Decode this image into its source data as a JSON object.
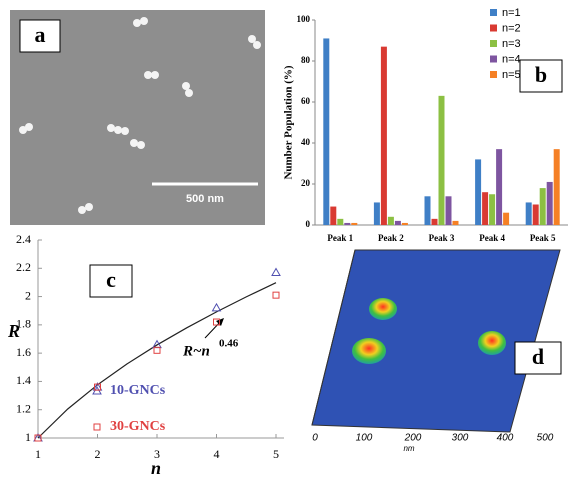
{
  "panels": {
    "a": {
      "label": "a",
      "scale_bar": "500 nm"
    },
    "d": {
      "label": "d",
      "xticks": [
        "0",
        "100",
        "200",
        "300",
        "400",
        "500"
      ],
      "x_unit": "nm"
    }
  },
  "chart_data": [
    {
      "type": "bar",
      "panel_label": "b",
      "ylabel": "Number Population (%)",
      "categories": [
        "Peak 1",
        "Peak 2",
        "Peak 3",
        "Peak 4",
        "Peak 5"
      ],
      "series": [
        {
          "name": "n=1",
          "color": "#3f7fc6",
          "values": [
            91,
            11,
            14,
            32,
            11
          ]
        },
        {
          "name": "n=2",
          "color": "#d93a32",
          "values": [
            9,
            87,
            3,
            16,
            10
          ]
        },
        {
          "name": "n=3",
          "color": "#8cc043",
          "values": [
            3,
            4,
            63,
            15,
            18
          ]
        },
        {
          "name": "n=4",
          "color": "#7e55a0",
          "values": [
            1,
            2,
            14,
            37,
            21
          ]
        },
        {
          "name": "n=5",
          "color": "#f58025",
          "values": [
            1,
            1,
            2,
            6,
            37
          ]
        }
      ],
      "ylim": [
        0,
        100
      ],
      "yticks": [
        0,
        20,
        40,
        60,
        80,
        100
      ],
      "legend": "upper right"
    },
    {
      "type": "scatter",
      "panel_label": "c",
      "xlabel": "n",
      "ylabel": "R",
      "x": [
        1,
        2,
        3,
        4,
        5
      ],
      "series": [
        {
          "name": "10-GNCs",
          "color": "#5050b0",
          "marker": "triangle",
          "values": [
            1,
            1.36,
            1.66,
            1.92,
            2.17
          ]
        },
        {
          "name": "30-GNCs",
          "color": "#e04040",
          "marker": "square",
          "values": [
            1,
            1.36,
            1.62,
            1.82,
            2.01
          ]
        }
      ],
      "fit": {
        "x": [
          1,
          1.5,
          2,
          2.5,
          3,
          3.5,
          4,
          4.5,
          5
        ],
        "values": [
          1,
          1.205,
          1.376,
          1.525,
          1.658,
          1.779,
          1.892,
          1.998,
          2.098
        ],
        "label": "R~n",
        "exponent": "0.46"
      },
      "xlim": [
        1,
        5
      ],
      "xticks": [
        1,
        2,
        3,
        4,
        5
      ],
      "ylim": [
        1,
        2.4
      ],
      "yticks": [
        1,
        1.2,
        1.4,
        1.6,
        1.8,
        2,
        2.2,
        2.4
      ]
    }
  ]
}
